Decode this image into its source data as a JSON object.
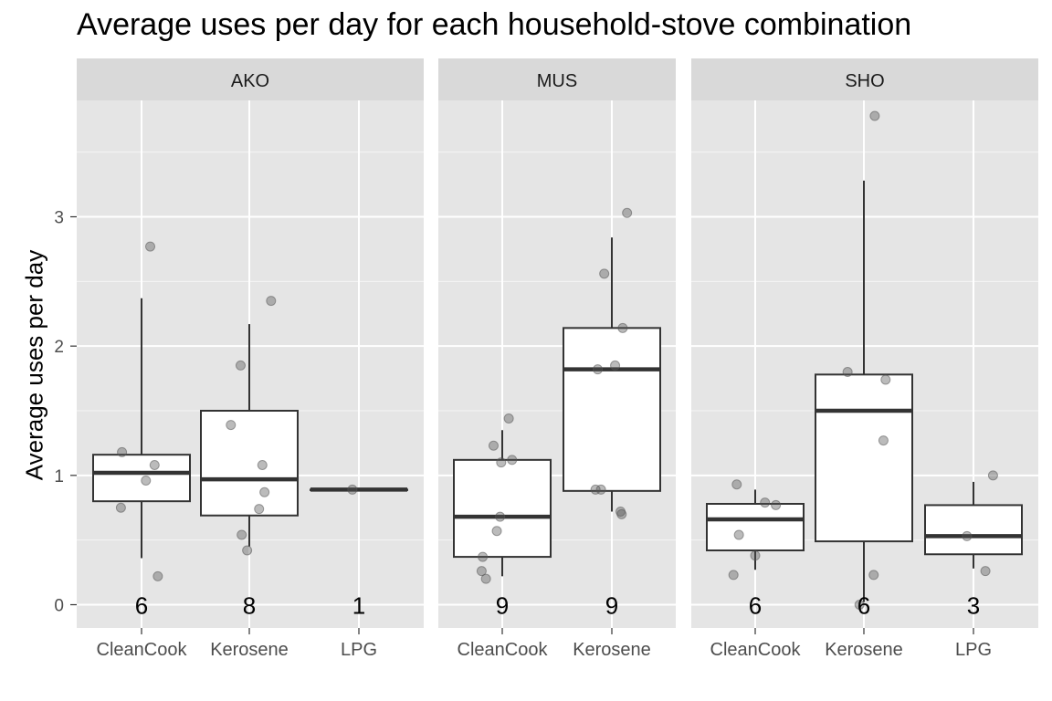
{
  "chart_data": {
    "type": "boxplot",
    "title": "Average uses per day for each household-stove combination",
    "xlabel": "",
    "ylabel": "Average uses per day",
    "ylim": [
      -0.18,
      3.9
    ],
    "yticks": [
      0,
      1,
      2,
      3
    ],
    "grid": true,
    "facets": [
      {
        "name": "AKO",
        "categories": [
          "CleanCook",
          "Kerosene",
          "LPG"
        ],
        "boxes": [
          {
            "q1": 0.8,
            "median": 1.02,
            "q3": 1.16,
            "whisker_low": 0.36,
            "whisker_high": 2.37,
            "n": "6",
            "points": [
              {
                "x_jitter": -0.18,
                "y": 1.18
              },
              {
                "x_jitter": 0.08,
                "y": 2.77
              },
              {
                "x_jitter": 0.12,
                "y": 1.08
              },
              {
                "x_jitter": 0.04,
                "y": 0.96
              },
              {
                "x_jitter": -0.19,
                "y": 0.75
              },
              {
                "x_jitter": 0.15,
                "y": 0.22
              }
            ]
          },
          {
            "q1": 0.69,
            "median": 0.97,
            "q3": 1.5,
            "whisker_low": 0.45,
            "whisker_high": 2.17,
            "n": "8",
            "points": [
              {
                "x_jitter": 0.2,
                "y": 2.35
              },
              {
                "x_jitter": -0.08,
                "y": 1.85
              },
              {
                "x_jitter": -0.17,
                "y": 1.39
              },
              {
                "x_jitter": 0.12,
                "y": 1.08
              },
              {
                "x_jitter": 0.14,
                "y": 0.87
              },
              {
                "x_jitter": 0.09,
                "y": 0.74
              },
              {
                "x_jitter": -0.07,
                "y": 0.54
              },
              {
                "x_jitter": -0.02,
                "y": 0.42
              }
            ]
          },
          {
            "q1": 0.89,
            "median": 0.89,
            "q3": 0.89,
            "whisker_low": 0.89,
            "whisker_high": 0.89,
            "n": "1",
            "points": [
              {
                "x_jitter": -0.06,
                "y": 0.89
              }
            ]
          }
        ]
      },
      {
        "name": "MUS",
        "categories": [
          "CleanCook",
          "Kerosene"
        ],
        "boxes": [
          {
            "q1": 0.37,
            "median": 0.68,
            "q3": 1.12,
            "whisker_low": 0.22,
            "whisker_high": 1.35,
            "n": "9",
            "points": [
              {
                "x_jitter": 0.06,
                "y": 1.44
              },
              {
                "x_jitter": -0.08,
                "y": 1.23
              },
              {
                "x_jitter": -0.01,
                "y": 1.1
              },
              {
                "x_jitter": 0.09,
                "y": 1.12
              },
              {
                "x_jitter": -0.02,
                "y": 0.68
              },
              {
                "x_jitter": -0.05,
                "y": 0.57
              },
              {
                "x_jitter": -0.18,
                "y": 0.37
              },
              {
                "x_jitter": -0.19,
                "y": 0.26
              },
              {
                "x_jitter": -0.15,
                "y": 0.2
              }
            ]
          },
          {
            "q1": 0.88,
            "median": 1.82,
            "q3": 2.14,
            "whisker_low": 0.72,
            "whisker_high": 2.84,
            "n": "9",
            "points": [
              {
                "x_jitter": 0.14,
                "y": 3.03
              },
              {
                "x_jitter": -0.07,
                "y": 2.56
              },
              {
                "x_jitter": 0.1,
                "y": 2.14
              },
              {
                "x_jitter": 0.03,
                "y": 1.85
              },
              {
                "x_jitter": -0.13,
                "y": 1.82
              },
              {
                "x_jitter": -0.1,
                "y": 0.89
              },
              {
                "x_jitter": -0.15,
                "y": 0.89
              },
              {
                "x_jitter": 0.08,
                "y": 0.72
              },
              {
                "x_jitter": 0.09,
                "y": 0.7
              }
            ]
          }
        ]
      },
      {
        "name": "SHO",
        "categories": [
          "CleanCook",
          "Kerosene",
          "LPG"
        ],
        "boxes": [
          {
            "q1": 0.42,
            "median": 0.66,
            "q3": 0.78,
            "whisker_low": 0.27,
            "whisker_high": 0.89,
            "n": "6",
            "points": [
              {
                "x_jitter": -0.17,
                "y": 0.93
              },
              {
                "x_jitter": 0.09,
                "y": 0.79
              },
              {
                "x_jitter": 0.19,
                "y": 0.77
              },
              {
                "x_jitter": -0.15,
                "y": 0.54
              },
              {
                "x_jitter": 0.0,
                "y": 0.38
              },
              {
                "x_jitter": -0.2,
                "y": 0.23
              }
            ]
          },
          {
            "q1": 0.49,
            "median": 1.5,
            "q3": 1.78,
            "whisker_low": 0.02,
            "whisker_high": 3.28,
            "n": "6",
            "points": [
              {
                "x_jitter": 0.1,
                "y": 3.78
              },
              {
                "x_jitter": -0.15,
                "y": 1.8
              },
              {
                "x_jitter": 0.2,
                "y": 1.74
              },
              {
                "x_jitter": 0.18,
                "y": 1.27
              },
              {
                "x_jitter": 0.09,
                "y": 0.23
              },
              {
                "x_jitter": -0.04,
                "y": 0.0
              }
            ]
          },
          {
            "q1": 0.39,
            "median": 0.53,
            "q3": 0.77,
            "whisker_low": 0.28,
            "whisker_high": 0.95,
            "n": "3",
            "points": [
              {
                "x_jitter": 0.18,
                "y": 1.0
              },
              {
                "x_jitter": -0.06,
                "y": 0.53
              },
              {
                "x_jitter": 0.11,
                "y": 0.26
              }
            ]
          }
        ]
      }
    ]
  },
  "colors": {
    "panel_background": "#e5e5e5",
    "strip_background": "#d9d9d9",
    "grid_major": "#ffffff",
    "box_fill": "#ffffff",
    "box_line": "#333333",
    "points": "#555555",
    "axis_text": "#4d4d4d"
  }
}
